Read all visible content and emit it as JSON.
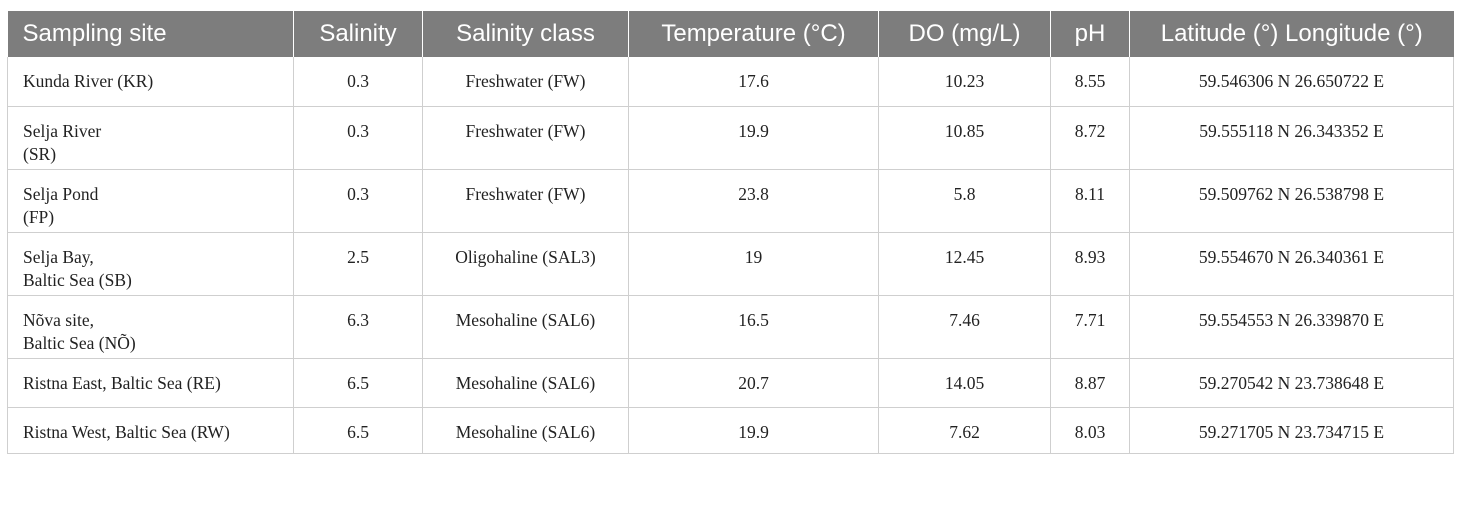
{
  "table": {
    "headers": [
      "Sampling site",
      "Salinity",
      "Salinity class",
      "Temperature (°C)",
      "DO (mg/L)",
      "pH",
      "Latitude (°) Longitude (°)"
    ],
    "rows": [
      {
        "site": "Kunda River (KR)",
        "salinity": "0.3",
        "salinity_class": "Freshwater (FW)",
        "temperature": "17.6",
        "do": "10.23",
        "ph": "8.55",
        "coords": "59.546306 N 26.650722 E"
      },
      {
        "site": "Selja River\n(SR)",
        "salinity": "0.3",
        "salinity_class": "Freshwater (FW)",
        "temperature": "19.9",
        "do": "10.85",
        "ph": "8.72",
        "coords": "59.555118 N 26.343352 E"
      },
      {
        "site": "Selja Pond\n(FP)",
        "salinity": "0.3",
        "salinity_class": "Freshwater (FW)",
        "temperature": "23.8",
        "do": "5.8",
        "ph": "8.11",
        "coords": "59.509762 N 26.538798 E"
      },
      {
        "site": "Selja Bay,\nBaltic Sea (SB)",
        "salinity": "2.5",
        "salinity_class": "Oligohaline (SAL3)",
        "temperature": "19",
        "do": "12.45",
        "ph": "8.93",
        "coords": "59.554670 N 26.340361 E"
      },
      {
        "site": "Nõva site,\nBaltic Sea (NÕ)",
        "salinity": "6.3",
        "salinity_class": "Mesohaline (SAL6)",
        "temperature": "16.5",
        "do": "7.46",
        "ph": "7.71",
        "coords": "59.554553 N 26.339870 E"
      },
      {
        "site": "Ristna East, Baltic Sea (RE)",
        "salinity": "6.5",
        "salinity_class": "Mesohaline (SAL6)",
        "temperature": "20.7",
        "do": "14.05",
        "ph": "8.87",
        "coords": "59.270542 N 23.738648 E"
      },
      {
        "site": "Ristna West, Baltic Sea (RW)",
        "salinity": "6.5",
        "salinity_class": "Mesohaline (SAL6)",
        "temperature": "19.9",
        "do": "7.62",
        "ph": "8.03",
        "coords": "59.271705 N 23.734715 E"
      }
    ]
  },
  "colors": {
    "header_background": "#7d7d7d",
    "header_text": "#ffffff",
    "grid_line": "#cfcfcf"
  }
}
